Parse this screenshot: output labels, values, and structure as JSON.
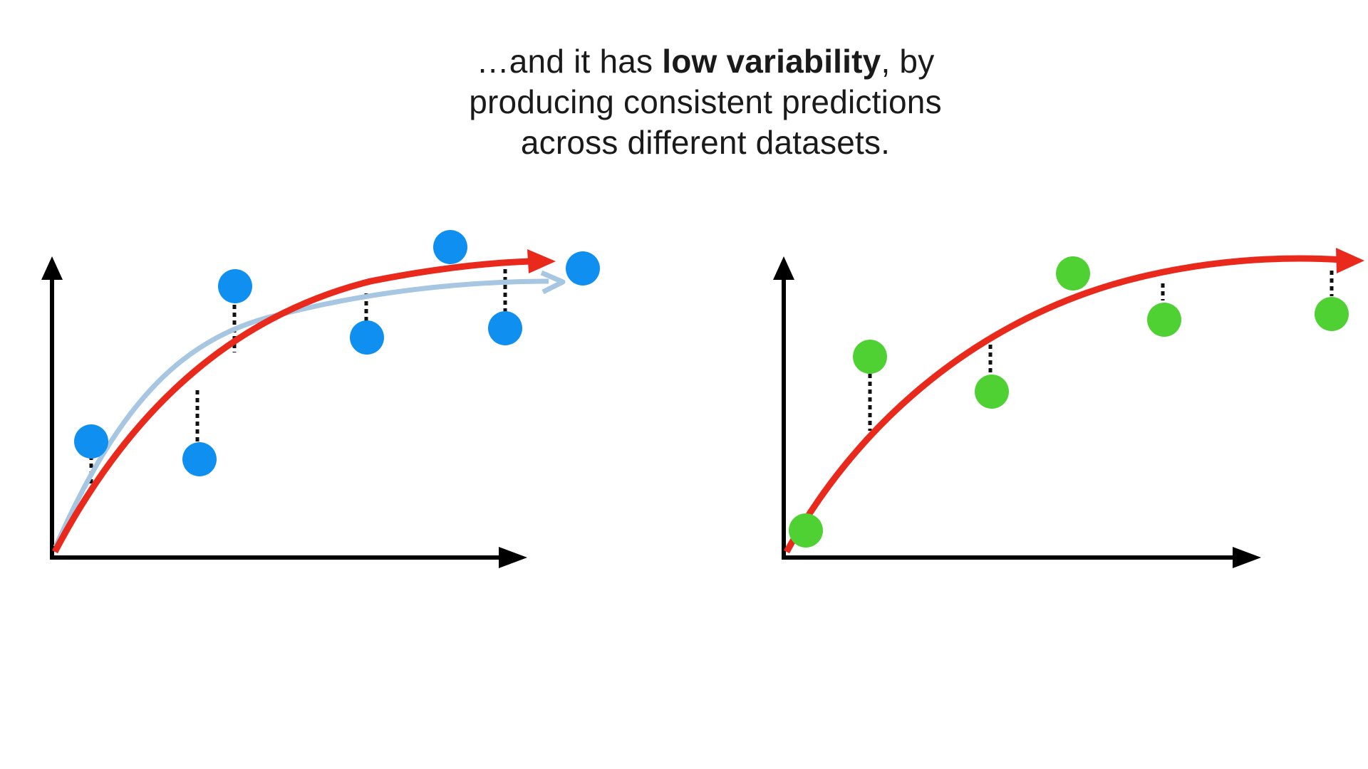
{
  "caption": {
    "line1_prefix": "…and it has ",
    "line1_bold": "low variability",
    "line1_suffix": ", by",
    "line2": "producing consistent predictions",
    "line3": "across different datasets."
  },
  "colors": {
    "blue_points": "#0f8ff0",
    "green_points": "#4fd134",
    "fit_curve": "#e8291c",
    "previous_fit_curve": "#a6c6e2",
    "axes": "#000000",
    "residual_lines": "#111111"
  },
  "panels": [
    {
      "name": "left",
      "point_color": "blue",
      "shows_previous_fit": true
    },
    {
      "name": "right",
      "point_color": "green",
      "shows_previous_fit": false
    }
  ]
}
